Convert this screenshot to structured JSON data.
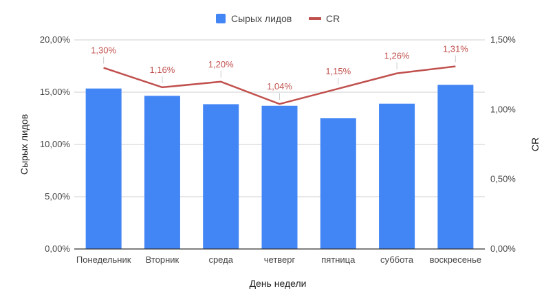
{
  "chart_data": {
    "type": "bar",
    "categories": [
      "Понедельник",
      "Вторник",
      "среда",
      "четверг",
      "пятница",
      "суббота",
      "воскресенье"
    ],
    "series": [
      {
        "name": "Сырых лидов",
        "type": "bar",
        "axis": "left",
        "color": "#4285f4",
        "values": [
          15.35,
          14.65,
          13.85,
          13.7,
          12.5,
          13.9,
          15.7
        ]
      },
      {
        "name": "CR",
        "type": "line",
        "axis": "right",
        "color": "#c0504d",
        "values": [
          1.3,
          1.16,
          1.2,
          1.04,
          1.15,
          1.26,
          1.31
        ],
        "data_labels": [
          "1,30%",
          "1,16%",
          "1,20%",
          "1,04%",
          "1,15%",
          "1,26%",
          "1,31%"
        ]
      }
    ],
    "xlabel": "День недели",
    "ylabel": "Сырых лидов",
    "y2label": "CR",
    "ylim": [
      0,
      20
    ],
    "y2lim": [
      0,
      1.5
    ],
    "yticks": [
      "0,00%",
      "5,00%",
      "10,00%",
      "15,00%",
      "20,00%"
    ],
    "y2ticks": [
      "0,00%",
      "0,50%",
      "1,00%",
      "1,50%"
    ],
    "grid": true,
    "legend_position": "top-center"
  }
}
